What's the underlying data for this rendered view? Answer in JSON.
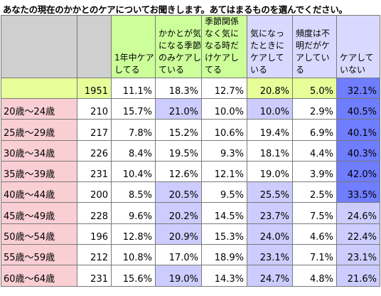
{
  "chart_data": {
    "type": "table",
    "title": "あなたの現在のかかとのケアについてお聞きします。あてはまるものを選んでください。",
    "columns": [
      "",
      "",
      "1年中ケアしてる",
      "かかとが気になる季節のみケアしている",
      "季節関係なく気になる時だけケアしてる",
      "気になったときにケアしている",
      "頻度は不明だがケアしている",
      "ケアしていない"
    ],
    "total": {
      "label": "",
      "n": "1951",
      "values": [
        "11.1%",
        "18.3%",
        "12.7%",
        "20.8%",
        "5.0%",
        "32.1%"
      ]
    },
    "rows": [
      {
        "label": "20歳～24歳",
        "n": "210",
        "values": [
          "15.7%",
          "21.0%",
          "10.0%",
          "10.0%",
          "2.9%",
          "40.5%"
        ]
      },
      {
        "label": "25歳～29歳",
        "n": "217",
        "values": [
          "7.8%",
          "15.2%",
          "10.6%",
          "19.4%",
          "6.9%",
          "40.1%"
        ]
      },
      {
        "label": "30歳～34歳",
        "n": "226",
        "values": [
          "8.4%",
          "19.5%",
          "9.3%",
          "18.1%",
          "4.4%",
          "40.3%"
        ]
      },
      {
        "label": "35歳～39歳",
        "n": "231",
        "values": [
          "10.4%",
          "12.6%",
          "12.1%",
          "19.0%",
          "3.9%",
          "42.0%"
        ]
      },
      {
        "label": "40歳～44歳",
        "n": "200",
        "values": [
          "8.5%",
          "20.5%",
          "9.5%",
          "25.5%",
          "2.5%",
          "33.5%"
        ]
      },
      {
        "label": "45歳～49歳",
        "n": "228",
        "values": [
          "9.6%",
          "20.2%",
          "14.5%",
          "23.7%",
          "7.5%",
          "24.6%"
        ]
      },
      {
        "label": "50歳～54歳",
        "n": "196",
        "values": [
          "12.8%",
          "20.9%",
          "15.3%",
          "24.0%",
          "4.6%",
          "22.4%"
        ]
      },
      {
        "label": "55歳～59歳",
        "n": "212",
        "values": [
          "10.8%",
          "17.0%",
          "18.9%",
          "23.1%",
          "7.1%",
          "23.1%"
        ]
      },
      {
        "label": "60歳～64歳",
        "n": "231",
        "values": [
          "15.6%",
          "19.0%",
          "14.3%",
          "24.7%",
          "4.8%",
          "21.6%"
        ]
      }
    ],
    "cell_shading": [
      [
        "w",
        "p",
        "w",
        "p",
        "w",
        "b"
      ],
      [
        "w",
        "w",
        "w",
        "w",
        "w",
        "b"
      ],
      [
        "w",
        "w",
        "w",
        "w",
        "w",
        "b"
      ],
      [
        "w",
        "w",
        "w",
        "w",
        "w",
        "b"
      ],
      [
        "w",
        "p",
        "w",
        "p",
        "w",
        "b"
      ],
      [
        "w",
        "p",
        "w",
        "p",
        "w",
        "p"
      ],
      [
        "w",
        "p",
        "w",
        "p",
        "w",
        "p"
      ],
      [
        "w",
        "w",
        "w",
        "p",
        "w",
        "p"
      ],
      [
        "w",
        "p",
        "w",
        "p",
        "w",
        "p"
      ]
    ],
    "total_shading": [
      "w",
      "w",
      "w",
      "g",
      "g",
      "b"
    ],
    "colors": {
      "header_blank": "#cfcfcf",
      "header_green": "#ccff99",
      "header_purple": "#d9d9ff",
      "row_label": "#f9cfd4",
      "highlight_green": "#e6ff99",
      "highlight_purple": "#ccccff",
      "highlight_blue": "#6f7dff"
    }
  }
}
